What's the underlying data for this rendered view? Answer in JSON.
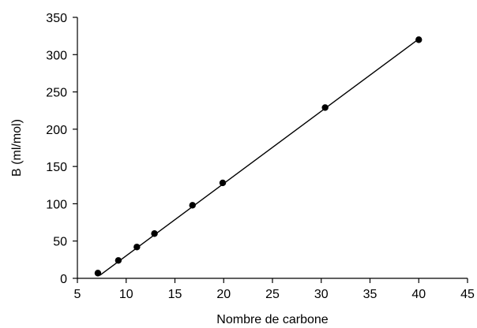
{
  "chart_data": {
    "type": "scatter",
    "title": "",
    "xlabel": "Nombre de carbone",
    "ylabel": "B (ml/mol)",
    "xlim": [
      5,
      45
    ],
    "ylim": [
      0,
      350
    ],
    "xticks": [
      5,
      10,
      15,
      20,
      25,
      30,
      35,
      40,
      45
    ],
    "yticks": [
      0,
      50,
      100,
      150,
      200,
      250,
      300,
      350
    ],
    "grid": false,
    "legend": "none",
    "series": [
      {
        "points": [
          {
            "x": 7.1,
            "y": 7
          },
          {
            "x": 9.2,
            "y": 24
          },
          {
            "x": 11.1,
            "y": 42
          },
          {
            "x": 12.9,
            "y": 60
          },
          {
            "x": 16.8,
            "y": 98
          },
          {
            "x": 19.9,
            "y": 128
          },
          {
            "x": 30.4,
            "y": 229
          },
          {
            "x": 40.0,
            "y": 320
          }
        ]
      }
    ],
    "trendline": {
      "type": "linear",
      "x": [
        7.3,
        40.0
      ],
      "y": [
        4,
        321
      ]
    },
    "colors": {
      "axis": "#000000",
      "marker": "#000000",
      "line": "#000000"
    }
  }
}
